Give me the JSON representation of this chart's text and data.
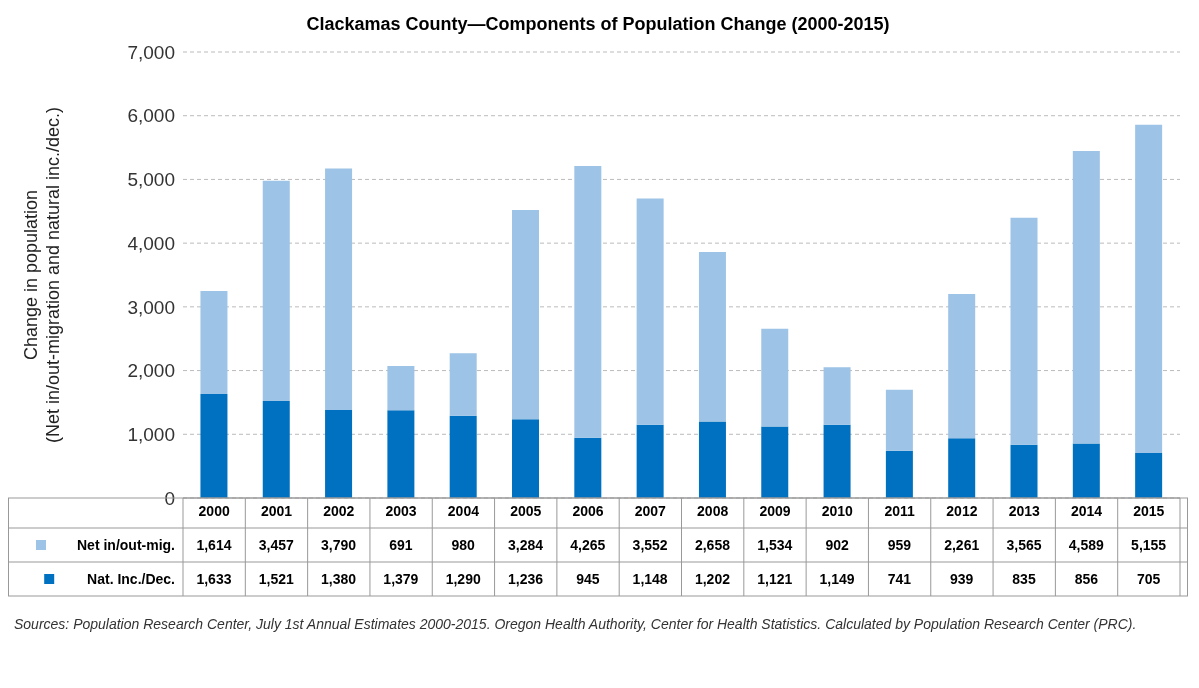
{
  "chart_data": {
    "type": "bar",
    "title": "Clackamas County—Components of Population Change (2000-2015)",
    "ylabel": "Change in population\n(Net in/out-migration and natural inc./dec.)",
    "categories": [
      "2000",
      "2001",
      "2002",
      "2003",
      "2004",
      "2005",
      "2006",
      "2007",
      "2008",
      "2009",
      "2010",
      "2011",
      "2012",
      "2013",
      "2014",
      "2015"
    ],
    "stacked": true,
    "grid": "y",
    "legend": "bottom left",
    "ylim": [
      0,
      7000
    ],
    "yticks": [
      0,
      {
        "value": 1000,
        "label": "1,000"
      },
      {
        "value": 2000,
        "label": "2,000"
      },
      {
        "value": 3000,
        "label": "3,000"
      },
      {
        "value": 4000,
        "label": "4,000"
      },
      {
        "value": 5000,
        "label": "5,000"
      },
      {
        "value": 6000,
        "label": "6,000"
      },
      {
        "value": 7000,
        "label": "7,000"
      }
    ],
    "series": [
      {
        "name": "Nat. Inc./Dec.",
        "color": "#0070c0",
        "values": [
          1633,
          1521,
          1380,
          1379,
          1290,
          1236,
          945,
          1148,
          1202,
          1121,
          1149,
          741,
          939,
          835,
          856,
          705
        ],
        "value_labels": [
          "1,633",
          "1,521",
          "1,380",
          "1,379",
          "1,290",
          "1,236",
          "945",
          "1,148",
          "1,202",
          "1,121",
          "1,149",
          "741",
          "939",
          "835",
          "856",
          "705"
        ]
      },
      {
        "name": "Net in/out-mig.",
        "color": "#9dc3e6",
        "values": [
          1614,
          3457,
          3790,
          691,
          980,
          3284,
          4265,
          3552,
          2658,
          1534,
          902,
          959,
          2261,
          3565,
          4589,
          5155
        ],
        "value_labels": [
          "1,614",
          "3,457",
          "3,790",
          "691",
          "980",
          "3,284",
          "4,265",
          "3,552",
          "2,658",
          "1,534",
          "902",
          "959",
          "2,261",
          "3,565",
          "4,589",
          "5,155"
        ]
      }
    ],
    "annotations": [
      "Sources:  Population Research Center, July 1st Annual Estimates  2000-2015. Oregon Health Authority, Center for Health Statistics.  Calculated by Population Research Center (PRC)."
    ]
  }
}
